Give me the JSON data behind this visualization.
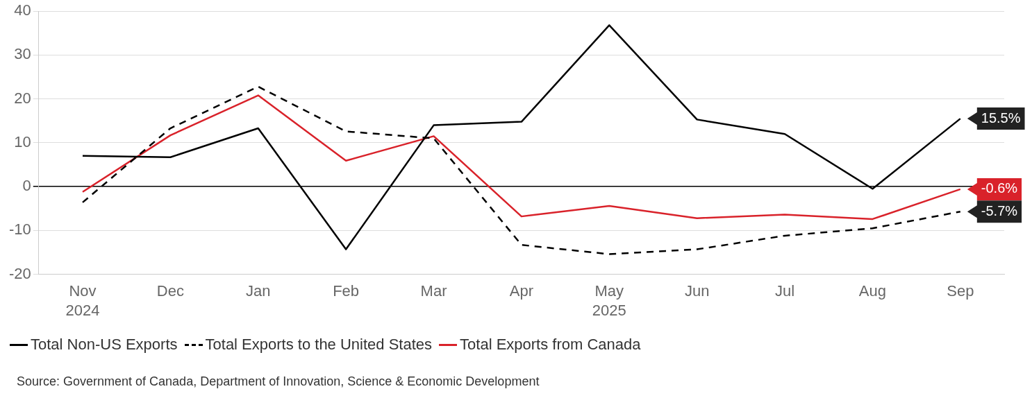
{
  "chart_data": {
    "type": "line",
    "categories": [
      "Nov",
      "Dec",
      "Jan",
      "Feb",
      "Mar",
      "Apr",
      "May",
      "Jun",
      "Jul",
      "Aug",
      "Sep"
    ],
    "series": [
      {
        "name": "Total Non-US Exports",
        "color": "#000000",
        "line_style": "solid",
        "values": [
          7.0,
          6.7,
          13.3,
          -14.3,
          14.0,
          14.8,
          36.8,
          15.3,
          12.0,
          -0.5,
          15.5
        ],
        "value_labels": [
          null,
          null,
          null,
          null,
          null,
          null,
          null,
          null,
          null,
          null,
          "15.5%"
        ]
      },
      {
        "name": "Total Exports to the United States",
        "color": "#000000",
        "line_style": "dashed",
        "values": [
          -3.6,
          13.3,
          22.8,
          12.6,
          11.0,
          -13.3,
          -15.4,
          -14.3,
          -11.2,
          -9.5,
          -5.7
        ],
        "value_labels": [
          null,
          null,
          null,
          null,
          null,
          null,
          null,
          null,
          null,
          null,
          "-5.7%"
        ]
      },
      {
        "name": "Total Exports from Canada",
        "color": "#d9222a",
        "line_style": "solid",
        "values": [
          -1.2,
          11.7,
          20.8,
          5.9,
          11.5,
          -6.8,
          -4.4,
          -7.2,
          -6.4,
          -7.4,
          -0.6
        ],
        "value_labels": [
          null,
          null,
          null,
          null,
          null,
          null,
          null,
          null,
          null,
          null,
          "-0.6%"
        ]
      }
    ],
    "ylim": [
      -20,
      40
    ],
    "yticks": [
      -20,
      -10,
      0,
      10,
      20,
      30,
      40
    ],
    "grid": "y",
    "legend": "bottom",
    "marker": "none",
    "annotations": [
      "2024",
      "2025",
      "Source: Government of Canada, Department of Innovation, Science & Economic Development"
    ]
  }
}
